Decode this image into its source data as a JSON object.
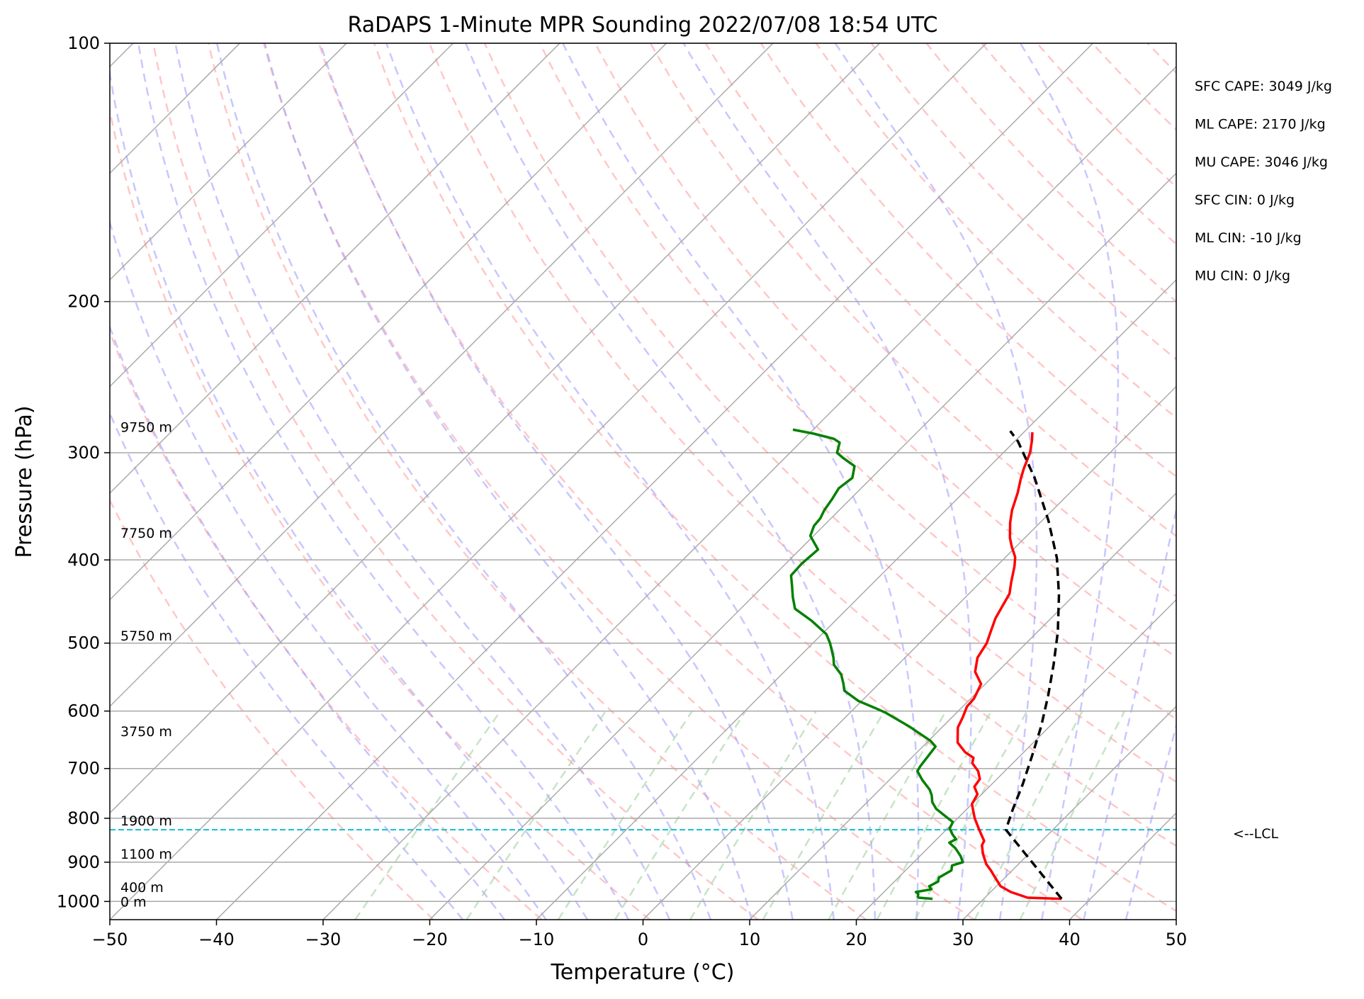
{
  "chart_data": {
    "type": "line",
    "title": "RaDAPS 1-Minute MPR Sounding 2022/07/08 18:54 UTC",
    "xlabel": "Temperature (°C)",
    "ylabel": "Pressure (hPa)",
    "xlim": [
      -50,
      50
    ],
    "ylim": [
      1050,
      100
    ],
    "y_scale": "log",
    "x_ticks": [
      -50,
      -40,
      -30,
      -20,
      -10,
      0,
      10,
      20,
      30,
      40,
      50
    ],
    "x_tick_labels": [
      "−50",
      "−40",
      "−30",
      "−20",
      "−10",
      "0",
      "10",
      "20",
      "30",
      "40",
      "50"
    ],
    "y_ticks": [
      100,
      200,
      300,
      400,
      500,
      600,
      700,
      800,
      900,
      1000
    ],
    "y_tick_labels": [
      "100",
      "200",
      "300",
      "400",
      "500",
      "600",
      "700",
      "800",
      "900",
      "1000"
    ],
    "grid": true,
    "skew_t": true,
    "series": [
      {
        "role": "temperature",
        "color": "#ff0000",
        "points": [
          [
            37.3,
            993
          ],
          [
            34,
            990
          ],
          [
            31.9,
            975
          ],
          [
            30.4,
            960
          ],
          [
            29.2,
            940
          ],
          [
            28,
            920
          ],
          [
            27,
            905
          ],
          [
            25.7,
            880
          ],
          [
            24.8,
            860
          ],
          [
            24.6,
            850
          ],
          [
            23.7,
            835
          ],
          [
            22.8,
            820
          ],
          [
            21.6,
            800
          ],
          [
            20.8,
            785
          ],
          [
            20,
            770
          ],
          [
            19.6,
            750
          ],
          [
            18.6,
            735
          ],
          [
            18.4,
            720
          ],
          [
            17.5,
            705
          ],
          [
            16.2,
            690
          ],
          [
            15.8,
            680
          ],
          [
            14.5,
            670
          ],
          [
            12.9,
            653
          ],
          [
            12.2,
            640
          ],
          [
            11.5,
            627
          ],
          [
            11,
            610
          ],
          [
            10.4,
            593
          ],
          [
            10.3,
            580
          ],
          [
            9.6,
            558
          ],
          [
            7.9,
            540
          ],
          [
            6.8,
            520
          ],
          [
            6.3,
            500
          ],
          [
            5.6,
            485
          ],
          [
            4.8,
            468
          ],
          [
            4.3,
            453
          ],
          [
            3.8,
            438
          ],
          [
            2.9,
            425
          ],
          [
            1.7,
            407
          ],
          [
            0.9,
            397
          ],
          [
            -0.4,
            386
          ],
          [
            -1.4,
            377
          ],
          [
            -2.8,
            362
          ],
          [
            -3.8,
            350
          ],
          [
            -4.9,
            334
          ],
          [
            -5.9,
            322
          ],
          [
            -6.6,
            313
          ],
          [
            -7.5,
            300
          ],
          [
            -8.5,
            290
          ],
          [
            -9.2,
            284
          ]
        ]
      },
      {
        "role": "dewpoint",
        "color": "#008000",
        "points": [
          [
            25.2,
            993
          ],
          [
            23.8,
            990
          ],
          [
            23.6,
            987
          ],
          [
            23.4,
            980
          ],
          [
            23,
            975
          ],
          [
            24.2,
            968
          ],
          [
            23.7,
            960
          ],
          [
            24.1,
            948
          ],
          [
            23.8,
            938
          ],
          [
            24.3,
            920
          ],
          [
            23.9,
            908
          ],
          [
            24.6,
            900
          ],
          [
            23.8,
            885
          ],
          [
            23.2,
            876
          ],
          [
            22.6,
            867
          ],
          [
            21.5,
            854
          ],
          [
            21.8,
            846
          ],
          [
            21,
            835
          ],
          [
            20.2,
            822
          ],
          [
            19.9,
            808
          ],
          [
            18.8,
            797
          ],
          [
            17.1,
            780
          ],
          [
            16.1,
            766
          ],
          [
            15.4,
            752
          ],
          [
            14.7,
            741
          ],
          [
            13.1,
            722
          ],
          [
            11.8,
            705
          ],
          [
            11.6,
            695
          ],
          [
            11.2,
            660
          ],
          [
            10.2,
            650
          ],
          [
            6.8,
            625
          ],
          [
            3.4,
            603
          ],
          [
            1.9,
            595
          ],
          [
            -0.3,
            584
          ],
          [
            -2.6,
            568
          ],
          [
            -3.3,
            558
          ],
          [
            -4.4,
            544
          ],
          [
            -6,
            530
          ],
          [
            -6.7,
            520
          ],
          [
            -8.4,
            500
          ],
          [
            -9.6,
            488
          ],
          [
            -12.2,
            471
          ],
          [
            -14.9,
            456
          ],
          [
            -16.2,
            442
          ],
          [
            -17.4,
            428
          ],
          [
            -18.4,
            417
          ],
          [
            -18.5,
            404
          ],
          [
            -18.3,
            389
          ],
          [
            -20.3,
            375
          ],
          [
            -20.9,
            365
          ],
          [
            -21,
            358
          ],
          [
            -21.4,
            350
          ],
          [
            -21.7,
            340
          ],
          [
            -22.1,
            330
          ],
          [
            -21.8,
            321
          ],
          [
            -22.7,
            311
          ],
          [
            -24.6,
            304
          ],
          [
            -25.6,
            300
          ],
          [
            -26.3,
            292
          ],
          [
            -27.2,
            289
          ],
          [
            -29.6,
            285
          ],
          [
            -31.9,
            282
          ]
        ]
      },
      {
        "role": "parcel",
        "color": "#000000",
        "style": "dashed",
        "points": [
          [
            37.3,
            993
          ],
          [
            25.6,
            825
          ],
          [
            24.3,
            780
          ],
          [
            22.9,
            730
          ],
          [
            21.1,
            676
          ],
          [
            19.2,
            625
          ],
          [
            17,
            576
          ],
          [
            14.6,
            530
          ],
          [
            11.9,
            485
          ],
          [
            8.6,
            440
          ],
          [
            4.9,
            398
          ],
          [
            0.6,
            360
          ],
          [
            -4.7,
            321
          ],
          [
            -9.7,
            291
          ],
          [
            -11.4,
            283
          ]
        ]
      }
    ],
    "reference_lines": {
      "isotherm_color": "#a9a9a9",
      "dry_adiabat_color": "#ff9999",
      "moist_adiabat_color": "#9999ff",
      "mixing_ratio_color": "#99cc99"
    },
    "lcl_pressure_hpa": 825,
    "lcl_color": "#17becf",
    "lcl_label": "<--LCL",
    "height_labels": [
      {
        "text": "9750 m",
        "pressure": 280
      },
      {
        "text": "7750 m",
        "pressure": 372
      },
      {
        "text": "5750 m",
        "pressure": 490
      },
      {
        "text": "3750 m",
        "pressure": 633
      },
      {
        "text": "1900 m",
        "pressure": 805
      },
      {
        "text": "1100 m",
        "pressure": 880
      },
      {
        "text": "400 m",
        "pressure": 962
      },
      {
        "text": "0 m",
        "pressure": 1000
      }
    ],
    "annotations": [
      "SFC CAPE: 3049 J/kg",
      "ML CAPE: 2170 J/kg",
      "MU CAPE: 3046 J/kg",
      "SFC CIN: 0 J/kg",
      "ML CIN: -10 J/kg",
      "MU CIN: 0 J/kg"
    ]
  }
}
